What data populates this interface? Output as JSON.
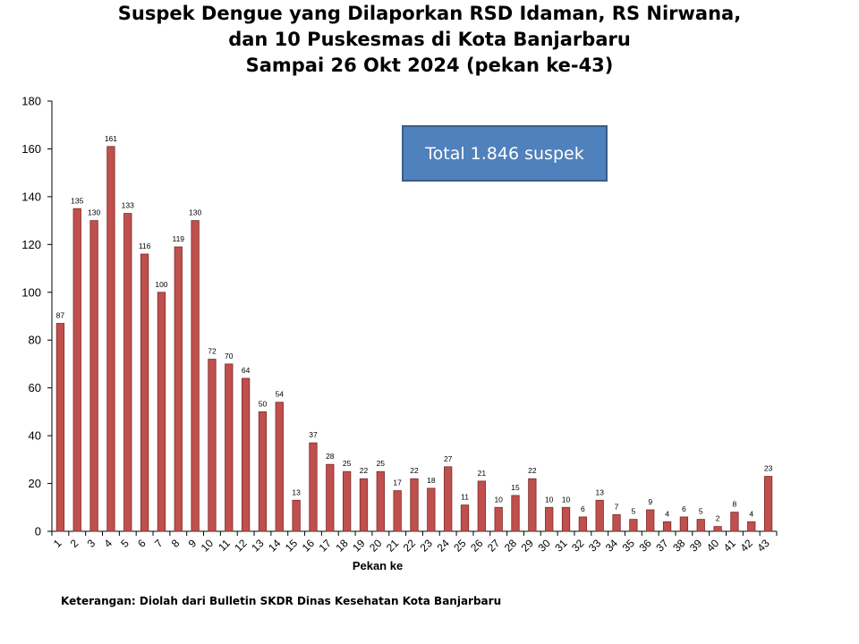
{
  "title_lines": [
    "Suspek Dengue yang Dilaporkan RSD Idaman, RS Nirwana,",
    "dan 10 Puskesmas di Kota Banjarbaru",
    "Sampai 26 Okt 2024 (pekan ke-43)"
  ],
  "total_box": "Total 1.846 suspek",
  "note": "Keterangan: Diolah dari Bulletin SKDR Dinas Kesehatan Kota Banjarbaru",
  "colors": {
    "bar_fill": "#C0504D",
    "bar_stroke": "#7B2A28",
    "total_box_fill": "#4F81BD",
    "total_box_stroke": "#385D8A"
  },
  "chart_data": {
    "type": "bar",
    "xlabel": "Pekan ke",
    "ylabel": "",
    "ylim": [
      0,
      180
    ],
    "yticks": [
      0,
      20,
      40,
      60,
      80,
      100,
      120,
      140,
      160,
      180
    ],
    "grid": false,
    "categories": [
      "1",
      "2",
      "3",
      "4",
      "5",
      "6",
      "7",
      "8",
      "9",
      "10",
      "11",
      "12",
      "13",
      "14",
      "15",
      "16",
      "17",
      "18",
      "19",
      "20",
      "21",
      "22",
      "23",
      "24",
      "25",
      "26",
      "27",
      "28",
      "29",
      "30",
      "31",
      "32",
      "33",
      "34",
      "35",
      "36",
      "37",
      "38",
      "39",
      "40",
      "41",
      "42",
      "43"
    ],
    "values": [
      87,
      135,
      130,
      161,
      133,
      116,
      100,
      119,
      130,
      72,
      70,
      64,
      50,
      54,
      13,
      37,
      28,
      25,
      22,
      25,
      17,
      22,
      18,
      27,
      11,
      21,
      10,
      15,
      22,
      10,
      10,
      6,
      13,
      7,
      5,
      9,
      4,
      6,
      5,
      2,
      8,
      4,
      23
    ]
  }
}
